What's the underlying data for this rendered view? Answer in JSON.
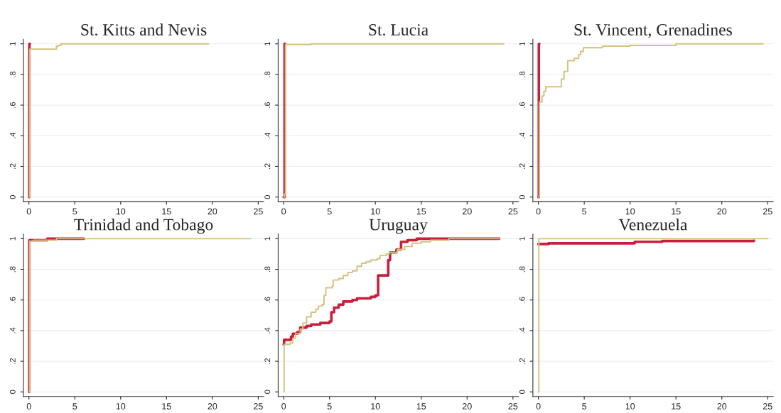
{
  "chart_data": [
    {
      "type": "step",
      "title": "St. Kitts and Nevis",
      "grid": "y",
      "xlim": [
        -0.6,
        25.6
      ],
      "ylim": [
        -0.03,
        1.03
      ],
      "xticks": [
        0,
        5,
        10,
        15,
        20,
        25
      ],
      "yticks": [
        0,
        {
          "value": 0.2,
          "label": ".2"
        },
        {
          "value": 0.4,
          "label": ".4"
        },
        {
          "value": 0.6,
          "label": ".6"
        },
        {
          "value": 0.8,
          "label": ".8"
        },
        1
      ],
      "series": [
        {
          "color": "#c8203c",
          "x": [
            0,
            0.05,
            0.1
          ],
          "values": [
            0,
            1,
            1
          ]
        },
        {
          "color": "#d4c27e",
          "x": [
            0,
            0.1,
            3,
            3.2,
            3.5,
            19.6
          ],
          "values": [
            0,
            0.965,
            0.985,
            0.99,
            1,
            1
          ]
        }
      ]
    },
    {
      "type": "step",
      "title": "St. Lucia",
      "grid": "y",
      "xlim": [
        -0.6,
        25.6
      ],
      "ylim": [
        -0.03,
        1.03
      ],
      "xticks": [
        0,
        5,
        10,
        15,
        20,
        25
      ],
      "yticks": [
        0,
        {
          "value": 0.2,
          "label": ".2"
        },
        {
          "value": 0.4,
          "label": ".4"
        },
        {
          "value": 0.6,
          "label": ".6"
        },
        {
          "value": 0.8,
          "label": ".8"
        },
        1
      ],
      "series": [
        {
          "color": "#c8203c",
          "x": [
            0,
            0.1,
            0.15
          ],
          "values": [
            0,
            1,
            1
          ]
        },
        {
          "color": "#d4c27e",
          "x": [
            0,
            0.1,
            0.2,
            3,
            24
          ],
          "values": [
            0,
            0.02,
            0.995,
            1,
            1
          ]
        }
      ]
    },
    {
      "type": "step",
      "title": "St. Vincent, Grenadines",
      "grid": "y",
      "xlim": [
        -0.6,
        25.6
      ],
      "ylim": [
        -0.03,
        1.03
      ],
      "xticks": [
        0,
        5,
        10,
        15,
        20,
        25
      ],
      "yticks": [
        0,
        {
          "value": 0.2,
          "label": ".2"
        },
        {
          "value": 0.4,
          "label": ".4"
        },
        {
          "value": 0.6,
          "label": ".6"
        },
        {
          "value": 0.8,
          "label": ".8"
        },
        1
      ],
      "series": [
        {
          "color": "#c8203c",
          "x": [
            0,
            0.05,
            0.1
          ],
          "values": [
            0,
            1,
            1
          ]
        },
        {
          "color": "#d4c27e",
          "x": [
            0,
            0.1,
            0.4,
            0.6,
            0.8,
            2.5,
            2.8,
            3.2,
            3.9,
            4.4,
            4.6,
            4.9,
            7,
            10,
            15,
            24.5
          ],
          "values": [
            0,
            0.62,
            0.66,
            0.69,
            0.72,
            0.77,
            0.82,
            0.89,
            0.905,
            0.93,
            0.95,
            0.975,
            0.985,
            0.99,
            1,
            1
          ]
        }
      ]
    },
    {
      "type": "step",
      "title": "Trinidad and Tobago",
      "grid": "y",
      "xlim": [
        -0.6,
        25.6
      ],
      "ylim": [
        -0.03,
        1.03
      ],
      "xticks": [
        0,
        5,
        10,
        15,
        20,
        25
      ],
      "yticks": [
        0,
        {
          "value": 0.2,
          "label": ".2"
        },
        {
          "value": 0.4,
          "label": ".4"
        },
        {
          "value": 0.6,
          "label": ".6"
        },
        {
          "value": 0.8,
          "label": ".8"
        },
        1
      ],
      "series": [
        {
          "color": "#c8203c",
          "x": [
            0,
            0.05,
            2,
            6
          ],
          "values": [
            0,
            0.99,
            1,
            1
          ]
        },
        {
          "color": "#d4c27e",
          "x": [
            0,
            0.1,
            0.5,
            3,
            24.2
          ],
          "values": [
            0,
            0.985,
            0.99,
            1,
            1
          ]
        }
      ]
    },
    {
      "type": "step",
      "title": "Uruguay",
      "grid": "y",
      "xlim": [
        -0.6,
        25.6
      ],
      "ylim": [
        -0.03,
        1.03
      ],
      "xticks": [
        0,
        5,
        10,
        15,
        20,
        25
      ],
      "yticks": [
        0,
        {
          "value": 0.2,
          "label": ".2"
        },
        {
          "value": 0.4,
          "label": ".4"
        },
        {
          "value": 0.6,
          "label": ".6"
        },
        {
          "value": 0.8,
          "label": ".8"
        },
        1
      ],
      "series": [
        {
          "color": "#c8203c",
          "x": [
            0,
            0.05,
            0.7,
            0.8,
            1.0,
            1.5,
            1.8,
            2.5,
            3,
            4,
            5,
            5.2,
            5.5,
            6,
            6.5,
            7.5,
            8,
            9.5,
            10,
            10.3,
            11.4,
            11.6,
            12.3,
            12.8,
            13.5,
            14.5,
            23.5
          ],
          "values": [
            0.31,
            0.34,
            0.34,
            0.36,
            0.38,
            0.39,
            0.42,
            0.43,
            0.44,
            0.45,
            0.46,
            0.52,
            0.55,
            0.57,
            0.59,
            0.6,
            0.61,
            0.62,
            0.63,
            0.76,
            0.86,
            0.91,
            0.93,
            0.98,
            0.99,
            1,
            1
          ]
        },
        {
          "color": "#d4c27e",
          "x": [
            0,
            0.05,
            0.7,
            1,
            1.3,
            1.8,
            2.1,
            2.5,
            3,
            3.5,
            3.8,
            4.2,
            4.4,
            4.6,
            5.3,
            5.4,
            6,
            6.5,
            7,
            7.5,
            8,
            8.5,
            9,
            9.5,
            10.2,
            10.5,
            11.2,
            11.5,
            12.4,
            13.2,
            14,
            15,
            16,
            18,
            23.5
          ],
          "values": [
            0,
            0.31,
            0.32,
            0.35,
            0.38,
            0.41,
            0.45,
            0.49,
            0.52,
            0.54,
            0.56,
            0.57,
            0.63,
            0.68,
            0.69,
            0.73,
            0.74,
            0.76,
            0.78,
            0.79,
            0.82,
            0.84,
            0.85,
            0.86,
            0.87,
            0.89,
            0.9,
            0.91,
            0.93,
            0.95,
            0.97,
            0.98,
            0.99,
            1,
            1
          ]
        }
      ]
    },
    {
      "type": "step",
      "title": "Venezuela",
      "grid": "y",
      "xlim": [
        -0.6,
        25.6
      ],
      "ylim": [
        -0.03,
        1.03
      ],
      "xticks": [
        0,
        5,
        10,
        15,
        20,
        25
      ],
      "yticks": [
        0,
        {
          "value": 0.2,
          "label": ".2"
        },
        {
          "value": 0.4,
          "label": ".4"
        },
        {
          "value": 0.6,
          "label": ".6"
        },
        {
          "value": 0.8,
          "label": ".8"
        },
        1
      ],
      "series": [
        {
          "color": "#c8203c",
          "x": [
            0,
            1.1,
            10.5,
            13.5,
            23.5
          ],
          "values": [
            0.965,
            0.97,
            0.98,
            0.985,
            0.988
          ]
        },
        {
          "color": "#d4c27e",
          "x": [
            0,
            0.05,
            25
          ],
          "values": [
            0,
            1,
            1
          ]
        }
      ]
    }
  ]
}
